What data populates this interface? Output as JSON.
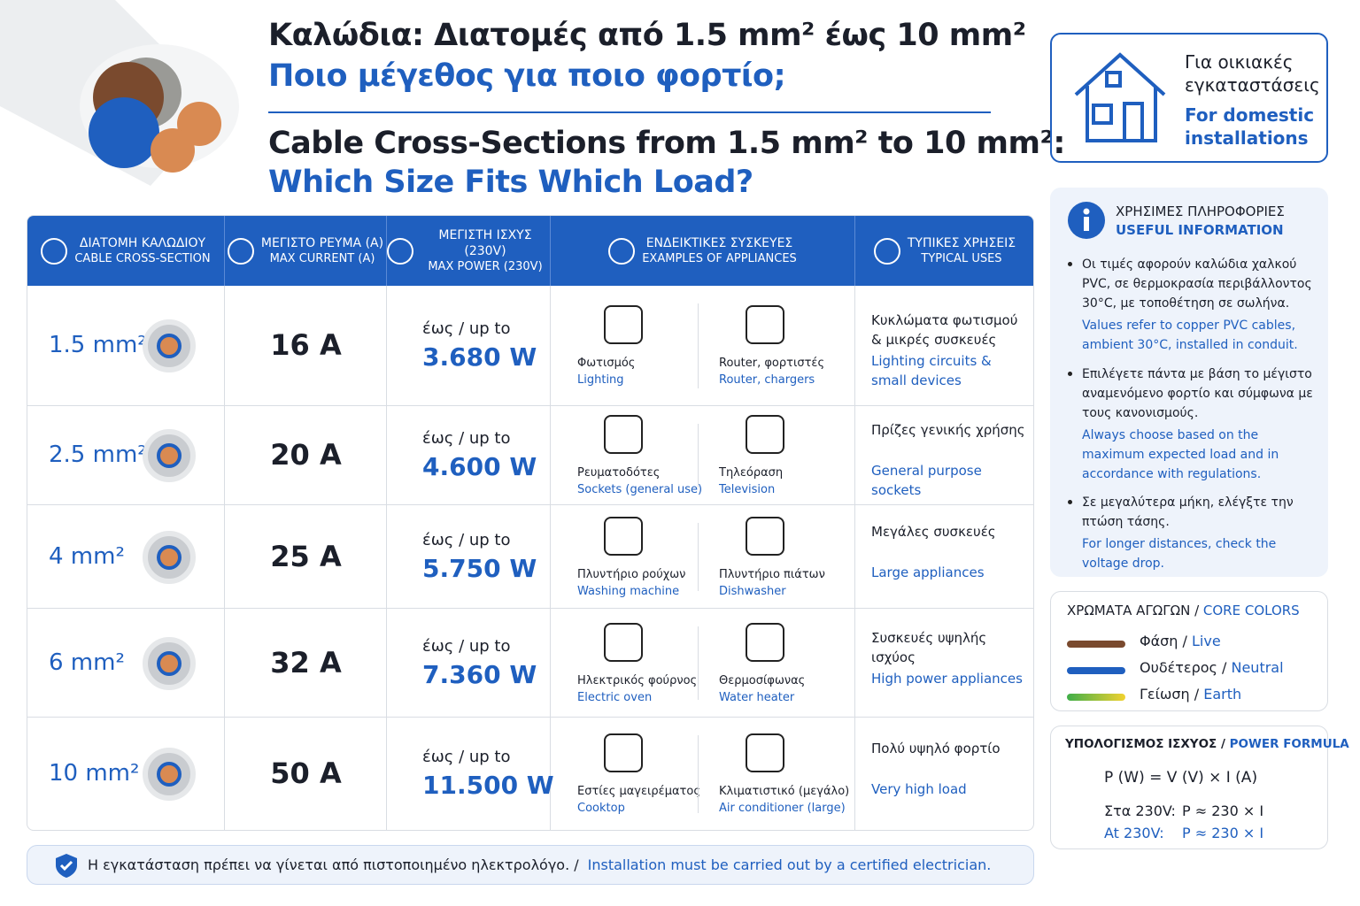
{
  "header": {
    "title_gr": "Καλώδια: Διατομές από 1.5 mm² έως 10 mm²",
    "subtitle_gr": "Ποιο μέγεθος για ποιο φορτίο;",
    "title_en": "Cable Cross-Sections from 1.5 mm² to 10 mm²:",
    "subtitle_en": "Which Size Fits Which Load?"
  },
  "table": {
    "columns": [
      {
        "gr": "ΔΙΑΤΟΜΗ ΚΑΛΩΔΙΟΥ",
        "en": "CABLE CROSS-SECTION"
      },
      {
        "gr": "ΜΕΓΙΣΤΟ ΡΕΥΜΑ (A)",
        "en": "MAX CURRENT (A)"
      },
      {
        "gr": "ΜΕΓΙΣΤΗ ΙΣΧΥΣ (230V)",
        "en": "MAX POWER (230V)"
      },
      {
        "gr": "ΕΝΔΕΙΚΤΙΚΕΣ ΣΥΣΚΕΥΕΣ",
        "en": "EXAMPLES OF APPLIANCES"
      },
      {
        "gr": "ΤΥΠΙΚΕΣ ΧΡΗΣΕΙΣ",
        "en": "TYPICAL USES"
      }
    ],
    "rows": [
      {
        "size": "1.5 mm²",
        "current": "16 A",
        "prefix": "έως / up to",
        "power": "3.680 W",
        "appliances": [
          {
            "gr": "Φωτισμός",
            "en": "Lighting"
          },
          {
            "gr": "Router, φορτιστές",
            "en": "Router, chargers"
          }
        ],
        "uses_gr": "Κυκλώματα φωτισμού & μικρές συσκευές",
        "uses_en": "Lighting circuits & small devices"
      },
      {
        "size": "2.5 mm²",
        "current": "20 A",
        "prefix": "έως / up to",
        "power": "4.600 W",
        "appliances": [
          {
            "gr": "Ρευματοδότες",
            "en": "Sockets (general use)"
          },
          {
            "gr": "Τηλεόραση",
            "en": "Television"
          }
        ],
        "uses_gr": "Πρίζες γενικής χρήσης",
        "uses_en": "General purpose sockets"
      },
      {
        "size": "4 mm²",
        "current": "25 A",
        "prefix": "έως / up to",
        "power": "5.750 W",
        "appliances": [
          {
            "gr": "Πλυντήριο ρούχων",
            "en": "Washing machine"
          },
          {
            "gr": "Πλυντήριο πιάτων",
            "en": "Dishwasher"
          }
        ],
        "uses_gr": "Μεγάλες συσκευές",
        "uses_en": "Large appliances"
      },
      {
        "size": "6 mm²",
        "current": "32 A",
        "prefix": "έως / up to",
        "power": "7.360 W",
        "appliances": [
          {
            "gr": "Ηλεκτρικός φούρνος",
            "en": "Electric oven"
          },
          {
            "gr": "Θερμοσίφωνας",
            "en": "Water heater"
          }
        ],
        "uses_gr": "Συσκευές υψηλής ισχύος",
        "uses_en": "High power appliances"
      },
      {
        "size": "10 mm²",
        "current": "50 A",
        "prefix": "έως / up to",
        "power": "11.500 W",
        "appliances": [
          {
            "gr": "Εστίες μαγειρέματος",
            "en": "Cooktop"
          },
          {
            "gr": "Κλιματιστικό (μεγάλο)",
            "en": "Air conditioner (large)"
          }
        ],
        "uses_gr": "Πολύ υψηλό φορτίο",
        "uses_en": "Very high load"
      }
    ]
  },
  "footer": {
    "gr": "Η εγκατάσταση πρέπει να γίνεται από πιστοποιημένο ηλεκτρολόγο. /",
    "en": "Installation must be carried out by a certified electrician."
  },
  "domestic": {
    "gr": "Για οικιακές εγκαταστάσεις",
    "en": "For domestic installations"
  },
  "info": {
    "title_gr": "ΧΡΗΣΙΜΕΣ ΠΛΗΡΟΦΟΡΙΕΣ",
    "title_en": "USEFUL INFORMATION",
    "items": [
      {
        "gr": "Οι τιμές αφορούν καλώδια χαλκού PVC, σε θερμοκρασία περιβάλλοντος 30°C, με τοποθέτηση σε σωλήνα.",
        "en": "Values refer to copper PVC cables, ambient 30°C, installed in conduit."
      },
      {
        "gr": "Επιλέγετε πάντα με βάση το μέγιστο αναμενόμενο φορτίο και σύμφωνα με τους κανονισμούς.",
        "en": "Always choose based on the maximum expected load and in accordance with regulations."
      },
      {
        "gr": "Σε μεγαλύτερα μήκη, ελέγξτε την πτώση τάσης.",
        "en": "For longer distances, check the voltage drop."
      }
    ]
  },
  "colors": {
    "title_gr": "ΧΡΩΜΑΤΑ ΑΓΩΓΩΝ /",
    "title_en": "CORE COLORS",
    "items": [
      {
        "gr": "Φάση /",
        "en": "Live",
        "color": [
          "#7a4a2e"
        ]
      },
      {
        "gr": "Ουδέτερος /",
        "en": "Neutral",
        "color": [
          "#1f5fbf"
        ]
      },
      {
        "gr": "Γείωση /",
        "en": "Earth",
        "color": [
          "#3fae49",
          "#f2d230"
        ]
      }
    ]
  },
  "formula": {
    "title_gr": "ΥΠΟΛΟΓΙΣΜΟΣ ΙΣΧΥΟΣ /",
    "title_en": "POWER FORMULA",
    "formula": "P (W) = V (V) × I (A)",
    "lines": [
      {
        "label": "Στα 230V:",
        "expr": "P ≈ 230 × I"
      },
      {
        "label": "At 230V:",
        "expr": "P ≈ 230 × I"
      }
    ]
  }
}
